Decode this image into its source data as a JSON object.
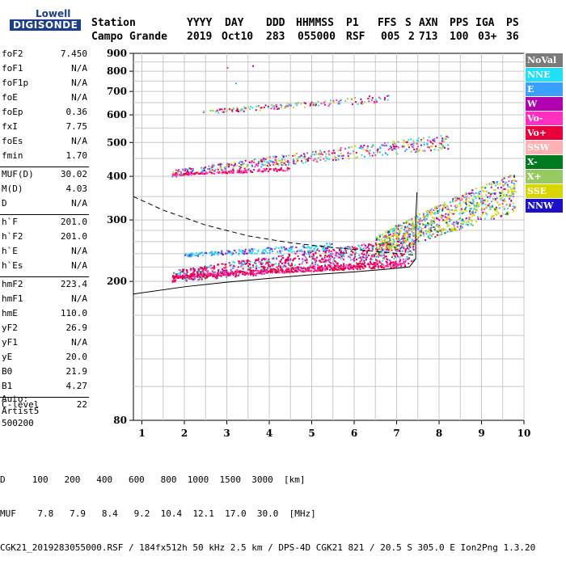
{
  "logo": {
    "line1": "Lowell",
    "line2": "DIGISONDE"
  },
  "header": {
    "labels": [
      "Station",
      "YYYY",
      "DAY",
      "DDD",
      "HHMMSS",
      "P1",
      "FFS",
      "S",
      "AXN",
      "PPS",
      "IGA",
      "PS"
    ],
    "values": [
      "Campo Grande",
      "2019",
      "Oct10",
      "283",
      "055000",
      "RSF",
      "005",
      "2",
      "713",
      "100",
      "03+",
      "36"
    ]
  },
  "params": {
    "group1": [
      {
        "k": "foF2",
        "v": "7.450"
      },
      {
        "k": "foF1",
        "v": "N/A"
      },
      {
        "k": "foF1p",
        "v": "N/A"
      },
      {
        "k": "foE",
        "v": "N/A"
      },
      {
        "k": "foEp",
        "v": "0.36"
      },
      {
        "k": "fxI",
        "v": "7.75"
      },
      {
        "k": "foEs",
        "v": "N/A"
      },
      {
        "k": "fmin",
        "v": "1.70"
      }
    ],
    "group2": [
      {
        "k": "MUF(D)",
        "v": "30.02"
      },
      {
        "k": "M(D)",
        "v": "4.03"
      },
      {
        "k": "D",
        "v": "N/A"
      }
    ],
    "group3": [
      {
        "k": "h`F",
        "v": "201.0"
      },
      {
        "k": "h`F2",
        "v": "201.0"
      },
      {
        "k": "h`E",
        "v": "N/A"
      },
      {
        "k": "h`Es",
        "v": "N/A"
      }
    ],
    "group4": [
      {
        "k": "hmF2",
        "v": "223.4"
      },
      {
        "k": "hmF1",
        "v": "N/A"
      },
      {
        "k": "hmE",
        "v": "110.0"
      },
      {
        "k": "yF2",
        "v": "26.9"
      },
      {
        "k": "yF1",
        "v": "N/A"
      },
      {
        "k": "yE",
        "v": "20.0"
      },
      {
        "k": "B0",
        "v": "21.9"
      },
      {
        "k": "B1",
        "v": "4.27"
      }
    ],
    "group5": [
      {
        "k": "C-level",
        "v": "22"
      }
    ]
  },
  "auto": {
    "line1": "Auto:",
    "line2": "Artist5",
    "line3": "500200"
  },
  "legend": [
    {
      "label": "NoVal",
      "color": "#808080"
    },
    {
      "label": "NNE",
      "color": "#1fe0f8"
    },
    {
      "label": "E",
      "color": "#3aa0ff"
    },
    {
      "label": "W",
      "color": "#b000b0"
    },
    {
      "label": "Vo-",
      "color": "#ff30c0"
    },
    {
      "label": "Vo+",
      "color": "#e8003a"
    },
    {
      "label": "SSW",
      "color": "#ffb0b0"
    },
    {
      "label": "X-",
      "color": "#007a20"
    },
    {
      "label": "X+",
      "color": "#98c860"
    },
    {
      "label": "SSE",
      "color": "#d8d800"
    },
    {
      "label": "NNW",
      "color": "#1a10c8"
    }
  ],
  "footer": {
    "line1": "D     100   200   400   600   800  1000  1500  3000  [km]",
    "line2": "MUF    7.8   7.9   8.4   9.2  10.4  12.1  17.0  30.0  [MHz]",
    "line3": "CGK21_2019283055000.RSF / 184fx512h 50 kHz 2.5 km / DPS-4D CGK21 821 / 20.5 S 305.0 E Ion2Png 1.3.20"
  },
  "chart_data": {
    "type": "scatter",
    "xlim": [
      0.8,
      10
    ],
    "ylim": [
      80,
      900
    ],
    "yscale": "log",
    "xticks": [
      "1",
      "2",
      "3",
      "4",
      "5",
      "6",
      "7",
      "8",
      "9",
      "10"
    ],
    "yticks": [
      "80",
      "200",
      "300",
      "400",
      "500",
      "600",
      "700",
      "800",
      "900"
    ],
    "grid": true,
    "traces": [
      {
        "name": "O-trace first hop",
        "x0": 1.7,
        "x1": 7.4,
        "y0": 205,
        "y1": 238
      },
      {
        "name": "second hop",
        "x0": 1.7,
        "x1": 8.2,
        "y0": 405,
        "y1": 495
      },
      {
        "name": "third hop",
        "x0": 2.4,
        "x1": 6.8,
        "y0": 610,
        "y1": 665
      },
      {
        "name": "X spread",
        "x0": 6.5,
        "x1": 9.8,
        "y0": 245,
        "y1": 345
      }
    ],
    "profile_solid": [
      [
        0.8,
        184
      ],
      [
        2,
        193
      ],
      [
        3,
        199
      ],
      [
        4,
        204
      ],
      [
        5,
        209
      ],
      [
        6,
        213
      ],
      [
        6.8,
        217
      ],
      [
        7.3,
        220
      ],
      [
        7.45,
        232
      ],
      [
        7.45,
        300
      ],
      [
        7.48,
        360
      ]
    ],
    "profile_dashed": [
      [
        0.8,
        350
      ],
      [
        1.5,
        320
      ],
      [
        2.5,
        290
      ],
      [
        3.5,
        270
      ],
      [
        4.5,
        258
      ],
      [
        5.5,
        250
      ],
      [
        6.5,
        244
      ],
      [
        7.4,
        238
      ]
    ]
  }
}
